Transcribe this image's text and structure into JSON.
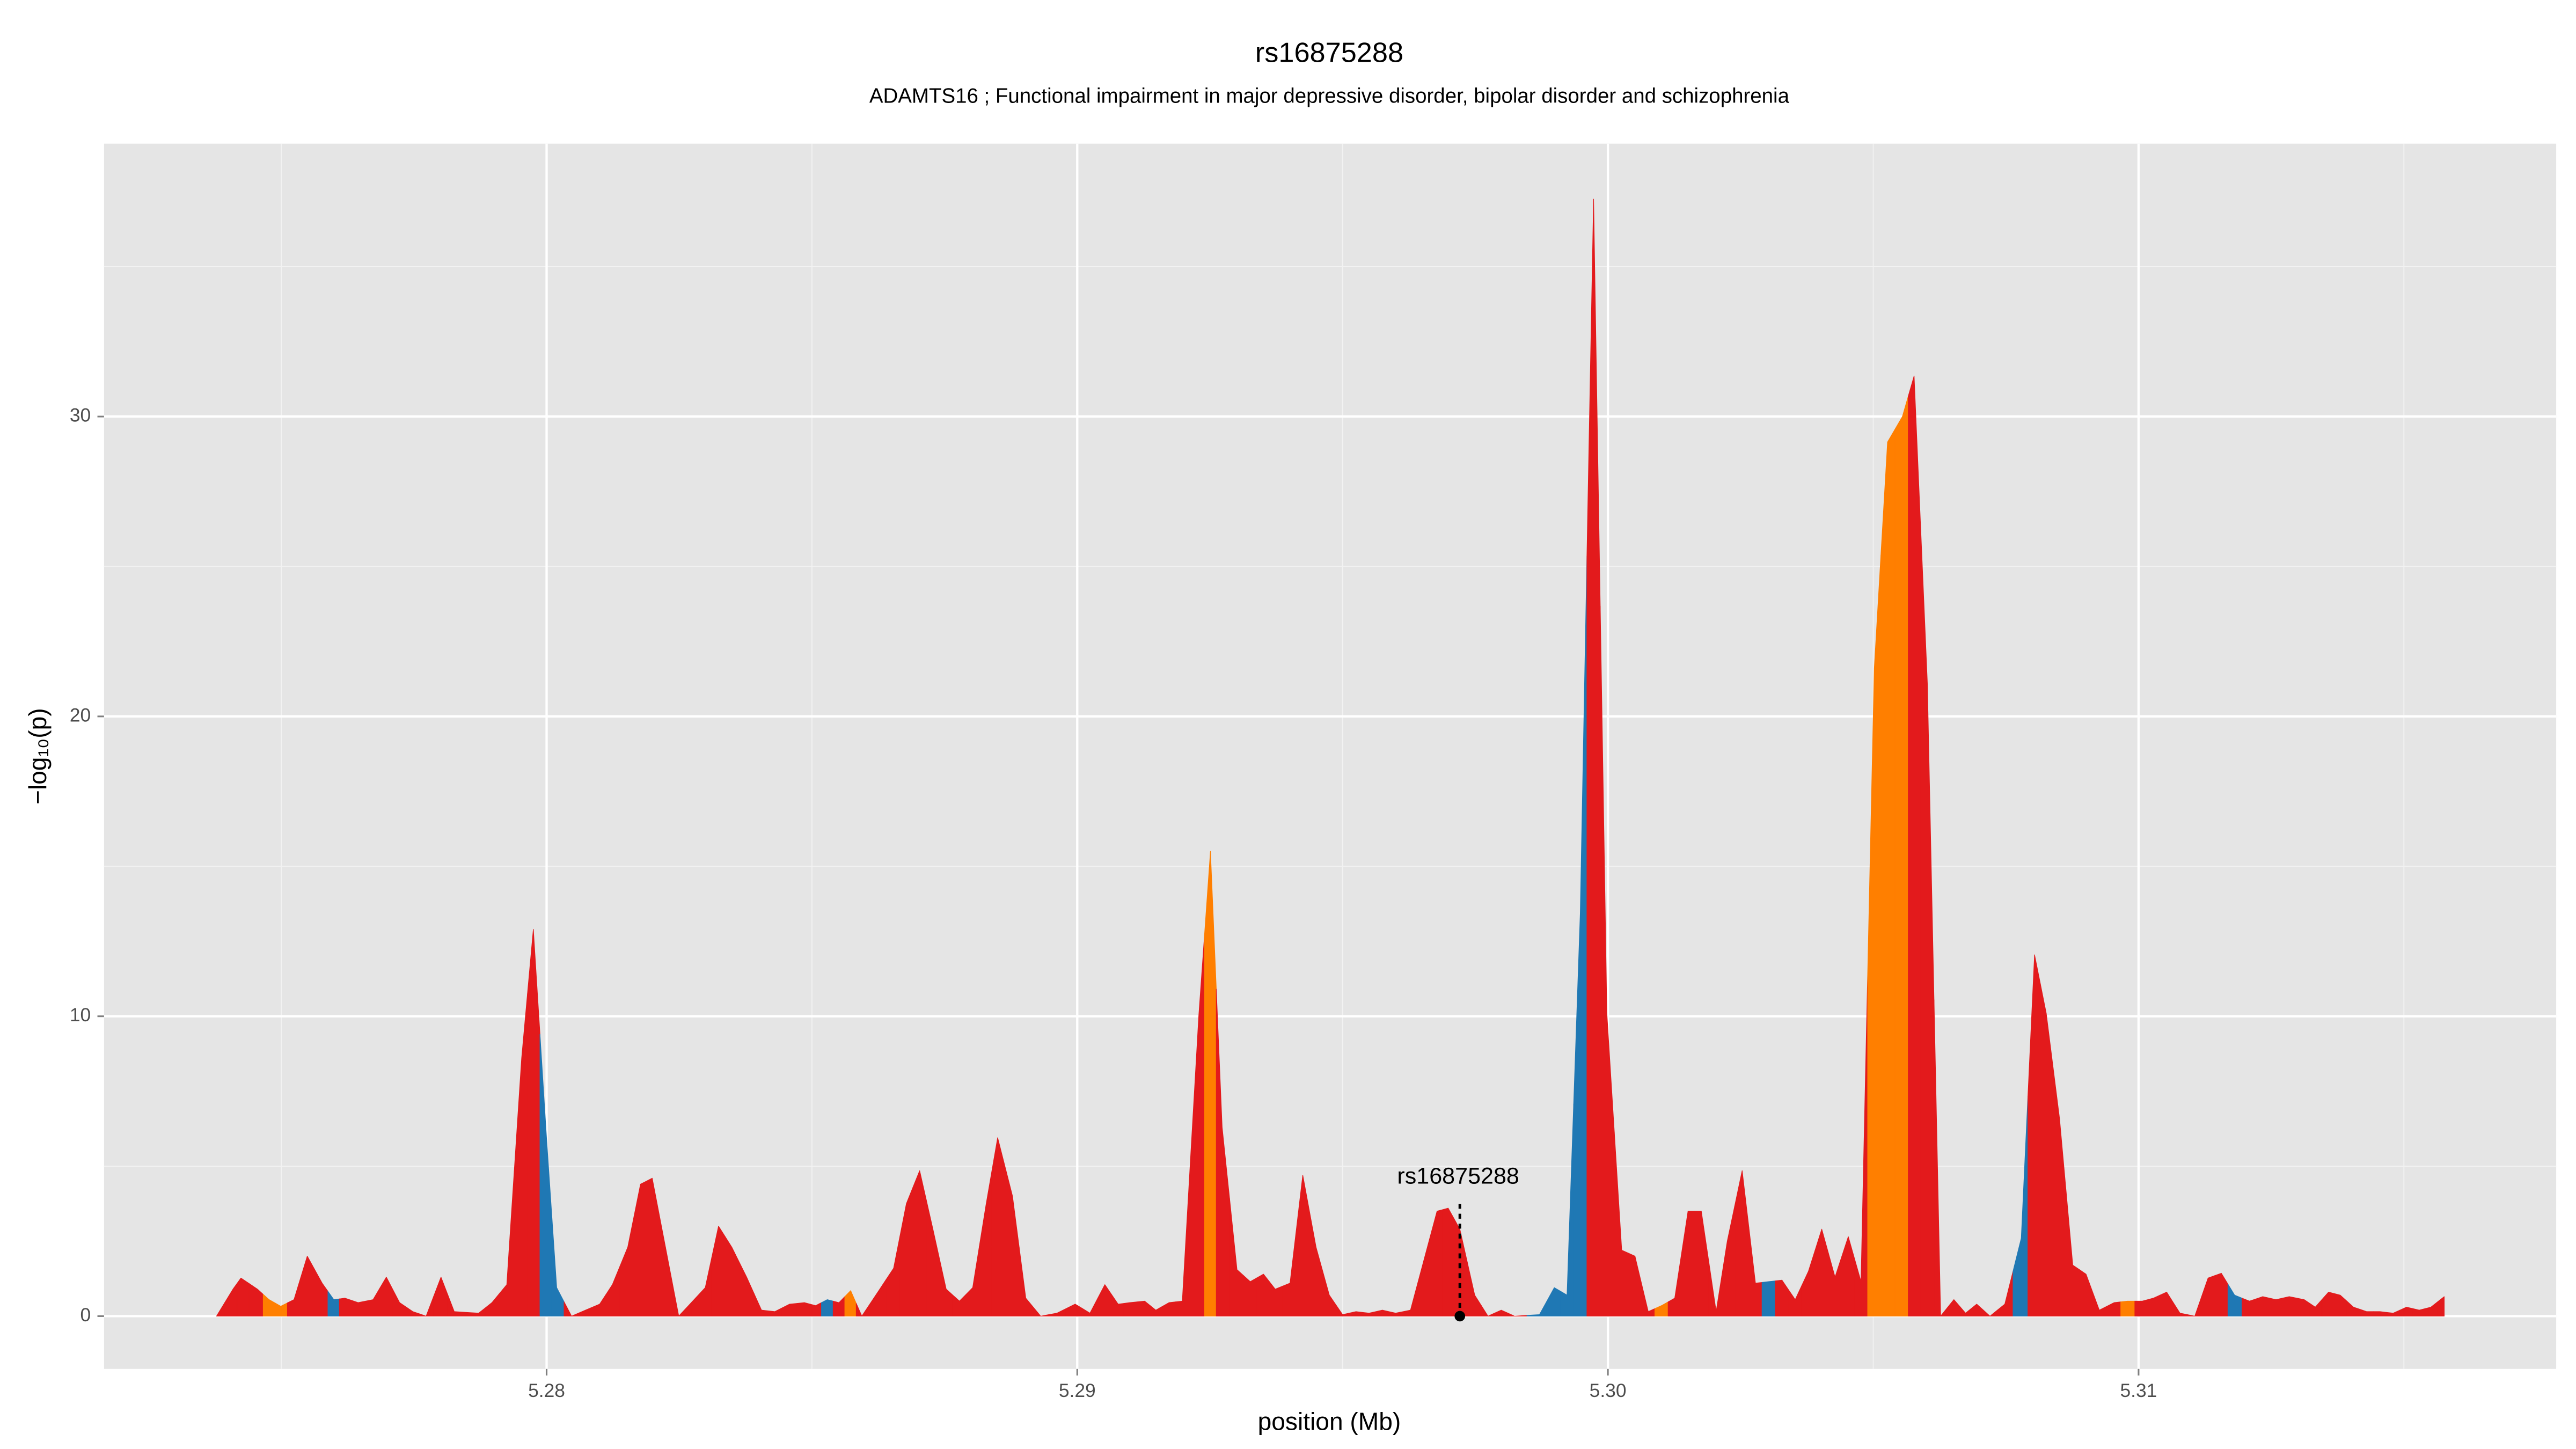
{
  "chart_data": {
    "type": "area",
    "title": "rs16875288",
    "subtitle": "ADAMTS16 ; Functional impairment in major depressive disorder, bipolar disorder and schizophrenia",
    "x_label": "position (Mb)",
    "y_label": "−log₁₀(p)",
    "xlim": [
      5.27166,
      5.31787
    ],
    "ylim": [
      -1.76,
      39.1
    ],
    "xticks": [
      5.28,
      5.29,
      {
        "value": 5.3,
        "label": "5.30"
      },
      5.31
    ],
    "yticks": [
      0,
      10,
      20,
      30
    ],
    "x_minor_ticks": [
      5.275,
      5.285,
      5.295,
      5.305,
      5.315
    ],
    "y_minor_ticks": [
      5,
      15,
      25,
      35
    ],
    "grid": true,
    "background": "#e5e5e5",
    "x": [
      5.27378,
      5.27409,
      5.27424,
      5.27455,
      5.27477,
      5.27499,
      5.27524,
      5.27549,
      5.27577,
      5.27599,
      5.2762,
      5.27645,
      5.27673,
      5.27698,
      5.27723,
      5.27748,
      5.27773,
      5.27801,
      5.27826,
      5.27872,
      5.27897,
      5.27925,
      5.27953,
      5.27975,
      5.28,
      5.28019,
      5.28047,
      5.281,
      5.28124,
      5.28153,
      5.28177,
      5.28199,
      5.28249,
      5.28299,
      5.28324,
      5.28349,
      5.28377,
      5.28405,
      5.2843,
      5.28458,
      5.28486,
      5.28507,
      5.28529,
      5.28551,
      5.28573,
      5.28594,
      5.28626,
      5.28654,
      5.28678,
      5.28703,
      5.28728,
      5.28753,
      5.28778,
      5.28803,
      5.28828,
      5.2885,
      5.28878,
      5.28903,
      5.28931,
      5.28962,
      5.28996,
      5.29024,
      5.29052,
      5.29077,
      5.29099,
      5.29127,
      5.29148,
      5.29173,
      5.29198,
      5.29229,
      5.29251,
      5.29273,
      5.29301,
      5.29326,
      5.29351,
      5.29373,
      5.29401,
      5.29425,
      5.2945,
      5.29475,
      5.295,
      5.29525,
      5.2955,
      5.29575,
      5.296,
      5.29628,
      5.29653,
      5.29678,
      5.29699,
      5.29721,
      5.29749,
      5.29774,
      5.29799,
      5.29824,
      5.29871,
      5.29899,
      5.29923,
      5.29948,
      5.29973,
      5.29998,
      5.30026,
      5.30051,
      5.30076,
      5.30101,
      5.30126,
      5.30151,
      5.30176,
      5.30204,
      5.30225,
      5.30253,
      5.30278,
      5.30303,
      5.30328,
      5.30353,
      5.30378,
      5.30403,
      5.30428,
      5.30453,
      5.30477,
      5.30502,
      5.30527,
      5.30555,
      5.30577,
      5.30602,
      5.30627,
      5.30652,
      5.30674,
      5.30695,
      5.3072,
      5.30748,
      5.30779,
      5.30804,
      5.30826,
      5.30851,
      5.30876,
      5.30901,
      5.30926,
      5.30954,
      5.30979,
      5.31007,
      5.31028,
      5.31053,
      5.31078,
      5.31106,
      5.31131,
      5.31156,
      5.31181,
      5.31209,
      5.31234,
      5.31259,
      5.31284,
      5.31312,
      5.31333,
      5.31358,
      5.3138,
      5.31405,
      5.3143,
      5.31455,
      5.3148,
      5.31505,
      5.31529,
      5.31551,
      5.31576
    ],
    "values": [
      0,
      0.9,
      1.27,
      0.9,
      0.55,
      0.33,
      0.55,
      2.0,
      1.1,
      0.55,
      0.6,
      0.45,
      0.55,
      1.3,
      0.45,
      0.15,
      0,
      1.3,
      0.15,
      0.1,
      0.45,
      1.05,
      8.6,
      12.9,
      5.9,
      0.95,
      0,
      0.4,
      1.05,
      2.3,
      4.4,
      4.6,
      0,
      0.95,
      3.0,
      2.3,
      1.3,
      0.2,
      0.15,
      0.4,
      0.45,
      0.35,
      0.55,
      0.45,
      0.85,
      0,
      0.85,
      1.6,
      3.75,
      4.85,
      2.9,
      0.9,
      0.5,
      0.95,
      3.7,
      5.95,
      4.0,
      0.6,
      0,
      0.1,
      0.4,
      0.1,
      1.05,
      0.4,
      0.45,
      0.5,
      0.2,
      0.45,
      0.5,
      10.0,
      15.5,
      6.3,
      1.55,
      1.15,
      1.4,
      0.9,
      1.1,
      4.7,
      2.3,
      0.7,
      0.05,
      0.15,
      0.1,
      0.2,
      0.1,
      0.2,
      1.85,
      3.5,
      3.6,
      2.9,
      0.7,
      0,
      0.2,
      0,
      0.05,
      0.95,
      0.7,
      13.45,
      37.25,
      10.1,
      2.2,
      2.0,
      0.15,
      0.35,
      0.6,
      3.5,
      3.5,
      0.15,
      2.5,
      4.85,
      1.1,
      1.15,
      1.2,
      0.55,
      1.5,
      2.9,
      1.3,
      2.65,
      1.15,
      21.6,
      29.15,
      30.0,
      31.35,
      21.1,
      0,
      0.55,
      0.1,
      0.4,
      0,
      0.4,
      2.6,
      12.05,
      10.1,
      6.6,
      1.7,
      1.4,
      0.2,
      0.45,
      0.5,
      0.5,
      0.6,
      0.8,
      0.1,
      0,
      1.27,
      1.43,
      0.7,
      0.5,
      0.65,
      0.55,
      0.65,
      0.55,
      0.3,
      0.8,
      0.7,
      0.3,
      0.15,
      0.15,
      0.1,
      0.3,
      0.2,
      0.3,
      0.65
    ],
    "point_colors": [
      "#e31a1c",
      "#e31a1c",
      "#e31a1c",
      "#e31a1c",
      "#ff7f00",
      "#ff7f00",
      "#e31a1c",
      "#e31a1c",
      "#e31a1c",
      "#1f78b4",
      "#e31a1c",
      "#e31a1c",
      "#e31a1c",
      "#e31a1c",
      "#e31a1c",
      "#e31a1c",
      "#e31a1c",
      "#e31a1c",
      "#e31a1c",
      "#e31a1c",
      "#e31a1c",
      "#e31a1c",
      "#e31a1c",
      "#e31a1c",
      "#1f78b4",
      "#1f78b4",
      "#e31a1c",
      "#e31a1c",
      "#e31a1c",
      "#e31a1c",
      "#e31a1c",
      "#e31a1c",
      "#e31a1c",
      "#e31a1c",
      "#e31a1c",
      "#e31a1c",
      "#e31a1c",
      "#e31a1c",
      "#e31a1c",
      "#e31a1c",
      "#e31a1c",
      "#e31a1c",
      "#1f78b4",
      "#e31a1c",
      "#ff7f00",
      "#e31a1c",
      "#e31a1c",
      "#e31a1c",
      "#e31a1c",
      "#e31a1c",
      "#e31a1c",
      "#e31a1c",
      "#e31a1c",
      "#e31a1c",
      "#e31a1c",
      "#e31a1c",
      "#e31a1c",
      "#e31a1c",
      "#e31a1c",
      "#e31a1c",
      "#e31a1c",
      "#e31a1c",
      "#e31a1c",
      "#e31a1c",
      "#e31a1c",
      "#e31a1c",
      "#e31a1c",
      "#e31a1c",
      "#e31a1c",
      "#e31a1c",
      "#ff7f00",
      "#e31a1c",
      "#e31a1c",
      "#e31a1c",
      "#e31a1c",
      "#e31a1c",
      "#e31a1c",
      "#e31a1c",
      "#e31a1c",
      "#e31a1c",
      "#e31a1c",
      "#e31a1c",
      "#e31a1c",
      "#e31a1c",
      "#e31a1c",
      "#e31a1c",
      "#e31a1c",
      "#e31a1c",
      "#e31a1c",
      "#e31a1c",
      "#e31a1c",
      "#e31a1c",
      "#e31a1c",
      "#e31a1c",
      "#1f78b4",
      "#1f78b4",
      "#1f78b4",
      "#1f78b4",
      "#e31a1c",
      "#e31a1c",
      "#e31a1c",
      "#e31a1c",
      "#e31a1c",
      "#ff7f00",
      "#e31a1c",
      "#e31a1c",
      "#e31a1c",
      "#e31a1c",
      "#e31a1c",
      "#e31a1c",
      "#e31a1c",
      "#1f78b4",
      "#e31a1c",
      "#e31a1c",
      "#e31a1c",
      "#e31a1c",
      "#e31a1c",
      "#e31a1c",
      "#e31a1c",
      "#ff7f00",
      "#ff7f00",
      "#ff7f00",
      "#e31a1c",
      "#e31a1c",
      "#e31a1c",
      "#e31a1c",
      "#e31a1c",
      "#e31a1c",
      "#e31a1c",
      "#e31a1c",
      "#1f78b4",
      "#e31a1c",
      "#e31a1c",
      "#e31a1c",
      "#e31a1c",
      "#e31a1c",
      "#e31a1c",
      "#e31a1c",
      "#ff7f00",
      "#e31a1c",
      "#e31a1c",
      "#e31a1c",
      "#e31a1c",
      "#e31a1c",
      "#e31a1c",
      "#e31a1c",
      "#1f78b4",
      "#e31a1c",
      "#e31a1c",
      "#e31a1c",
      "#e31a1c",
      "#e31a1c",
      "#e31a1c",
      "#e31a1c",
      "#e31a1c",
      "#e31a1c",
      "#e31a1c",
      "#e31a1c",
      "#e31a1c",
      "#e31a1c",
      "#e31a1c",
      "#e31a1c",
      "#e31a1c"
    ],
    "annotation": {
      "text": "rs16875288",
      "x": 5.29721,
      "y": 0
    }
  }
}
